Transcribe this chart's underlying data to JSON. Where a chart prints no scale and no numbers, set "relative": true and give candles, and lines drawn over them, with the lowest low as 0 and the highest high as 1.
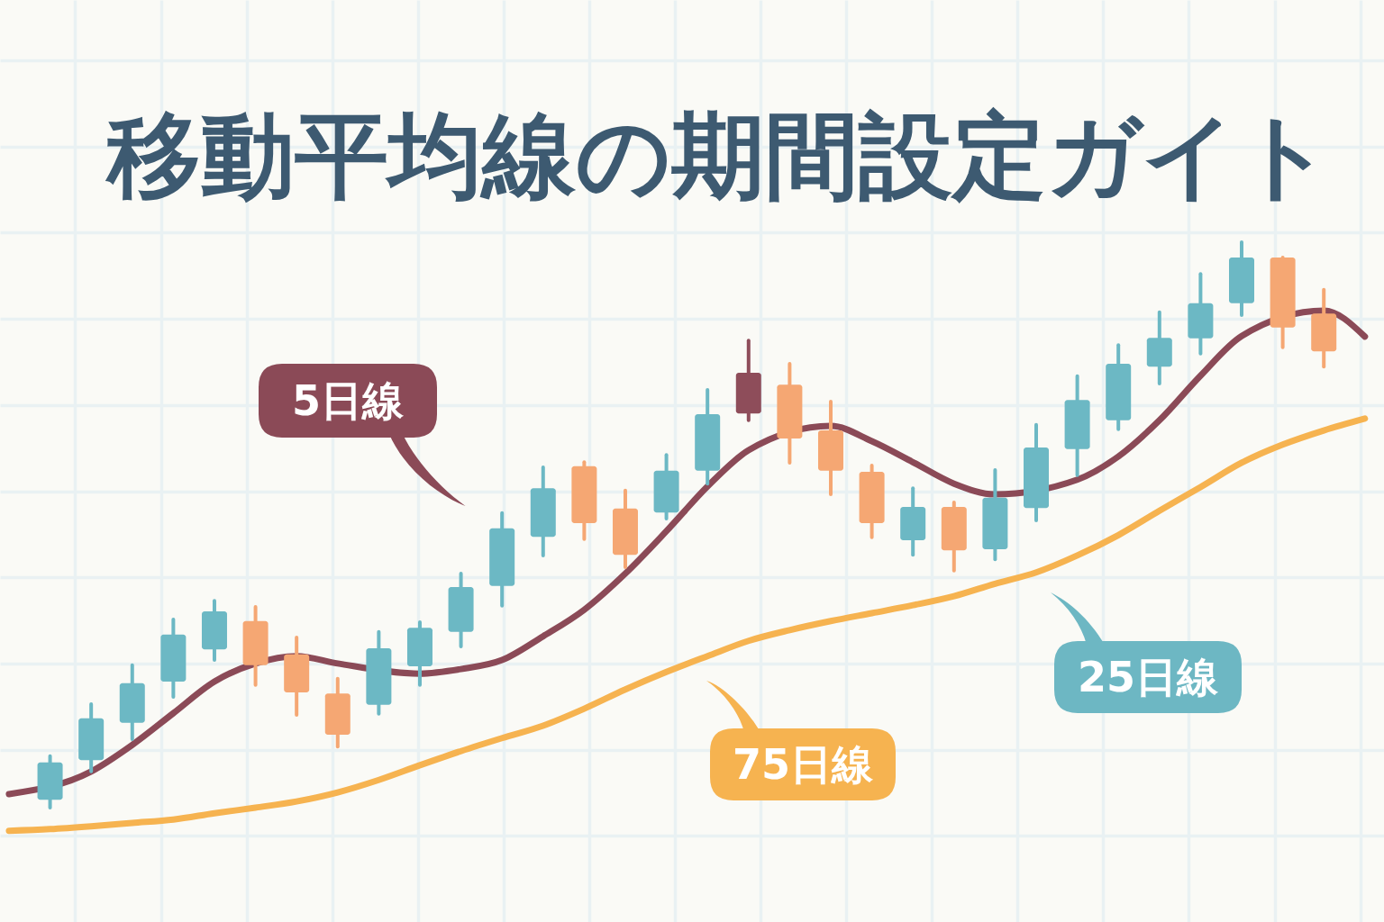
{
  "chart_data": {
    "type": "candlestick",
    "title": "移動平均線の期間設定ガイト",
    "relative": true,
    "grid": true,
    "categories": [
      null,
      null,
      null,
      null,
      null,
      null,
      null,
      null,
      null,
      null,
      null,
      null,
      null,
      null,
      null,
      null,
      null,
      null,
      null,
      null,
      null,
      null,
      null,
      null,
      null,
      null,
      null,
      null,
      null,
      null,
      null,
      null,
      null,
      null
    ],
    "ohlc": [
      null,
      [
        0.014,
        0.091,
        0,
        0.08
      ],
      [
        0.084,
        0.183,
        0.064,
        0.158
      ],
      [
        0.15,
        0.252,
        0.121,
        0.22
      ],
      [
        0.223,
        0.333,
        0.196,
        0.306
      ],
      [
        0.28,
        0.366,
        0.261,
        0.347
      ],
      [
        0.33,
        0.355,
        0.217,
        0.252
      ],
      [
        0.271,
        0.301,
        0.164,
        0.204
      ],
      [
        0.202,
        0.228,
        0.108,
        0.129
      ],
      [
        0.182,
        0.311,
        0.166,
        0.282
      ],
      [
        0.25,
        0.328,
        0.217,
        0.318
      ],
      [
        0.311,
        0.414,
        0.285,
        0.39
      ],
      [
        0.392,
        0.521,
        0.357,
        0.494
      ],
      [
        0.479,
        0.602,
        0.446,
        0.565
      ],
      [
        0.604,
        0.611,
        0.475,
        0.503
      ],
      [
        0.529,
        0.561,
        0.425,
        0.447
      ],
      [
        0.522,
        0.624,
        0.511,
        0.596
      ],
      [
        0.596,
        0.739,
        0.573,
        0.696
      ],
      [
        0.697,
        0.826,
        0.685,
        0.769
      ],
      [
        0.748,
        0.785,
        0.61,
        0.653
      ],
      [
        0.667,
        0.718,
        0.554,
        0.596
      ],
      [
        0.594,
        0.605,
        0.478,
        0.503
      ],
      [
        0.473,
        0.565,
        0.447,
        0.532
      ],
      [
        0.532,
        0.54,
        0.419,
        0.455
      ],
      [
        0.457,
        0.597,
        0.439,
        0.548
      ],
      [
        0.53,
        0.677,
        0.508,
        0.637
      ],
      [
        0.634,
        0.763,
        0.588,
        0.721
      ],
      [
        0.685,
        0.818,
        0.669,
        0.785
      ],
      [
        0.78,
        0.876,
        0.75,
        0.831
      ],
      [
        0.83,
        0.944,
        0.803,
        0.892
      ],
      [
        0.892,
        1,
        0.871,
        0.973
      ],
      [
        0.973,
        0.973,
        0.814,
        0.849
      ],
      [
        0.874,
        0.916,
        0.78,
        0.807
      ],
      null
    ],
    "colors": [
      null,
      "#6cb8c4",
      "#6cb8c4",
      "#6cb8c4",
      "#6cb8c4",
      "#6cb8c4",
      "#f5a773",
      "#f5a773",
      "#f5a773",
      "#6cb8c4",
      "#6cb8c4",
      "#6cb8c4",
      "#6cb8c4",
      "#6cb8c4",
      "#f5a773",
      "#f5a773",
      "#6cb8c4",
      "#6cb8c4",
      "#8e4d5a",
      "#f5a773",
      "#f5a773",
      "#f5a773",
      "#6cb8c4",
      "#f5a773",
      "#6cb8c4",
      "#6cb8c4",
      "#6cb8c4",
      "#6cb8c4",
      "#6cb8c4",
      "#6cb8c4",
      "#6cb8c4",
      "#f5a773",
      "#f5a773",
      null
    ],
    "series": [
      {
        "name": "5日線",
        "type": "line",
        "color": "#8b4a57",
        "values": [
          0.024,
          null,
          0.064,
          0.111,
          0.167,
          0.223,
          0.255,
          0.268,
          0.255,
          null,
          0.237,
          0.245,
          0.261,
          0.303,
          0.35,
          0.414,
          0.489,
          0.568,
          0.632,
          null,
          0.675,
          0.648,
          0.611,
          0.573,
          0.554,
          null,
          0.58,
          0.621,
          0.685,
          0.764,
          0.834,
          null,
          0.879,
          0.833
        ]
      },
      {
        "name": "75日線",
        "type": "line",
        "color": "#f6b350",
        "values": [
          -0.041,
          -0.038,
          -0.033,
          -0.027,
          -0.021,
          -0.01,
          0,
          0.011,
          0.027,
          0.049,
          0.075,
          0.1,
          0.123,
          0.145,
          0.175,
          0.209,
          0.24,
          0.268,
          0.295,
          0.314,
          0.33,
          0.344,
          0.358,
          0.374,
          0.396,
          0.416,
          0.446,
          0.482,
          0.525,
          0.567,
          0.61,
          0.642,
          0.667,
          0.688
        ]
      }
    ],
    "annotations": [
      "25日線"
    ]
  }
}
